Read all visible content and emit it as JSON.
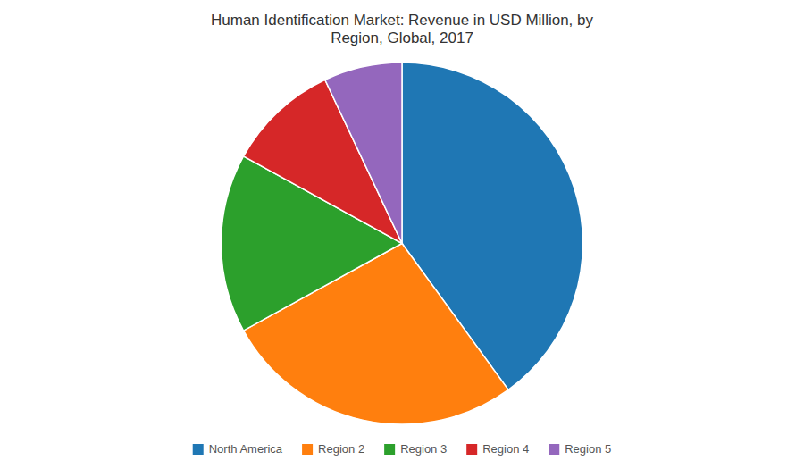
{
  "chart_data": {
    "type": "pie",
    "title": "Human Identification Market: Revenue in USD Million, by\nRegion, Global, 2017",
    "categories": [
      "North America",
      "Region 2",
      "Region 3",
      "Region 4",
      "Region 5"
    ],
    "values": [
      40,
      27,
      16,
      10,
      7
    ],
    "legend": "bottom"
  }
}
